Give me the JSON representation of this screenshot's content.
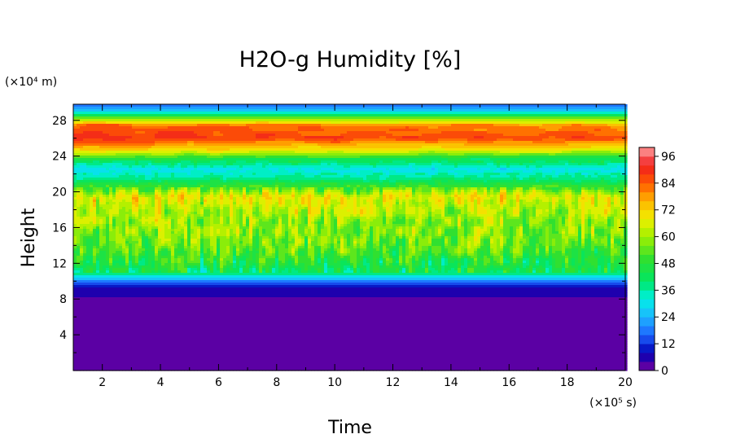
{
  "chart_data": {
    "type": "heatmap",
    "title": "H2O-g Humidity [%]",
    "xlabel": "Time",
    "ylabel": "Height",
    "x_unit_label": "(×10⁵ s)",
    "y_unit_label": "(×10⁴ m)",
    "x_range": [
      1,
      20
    ],
    "y_range": [
      0,
      29.8
    ],
    "x_ticks": [
      2,
      4,
      6,
      8,
      10,
      12,
      14,
      16,
      18,
      20
    ],
    "y_ticks": [
      4,
      8,
      12,
      16,
      20,
      24,
      28
    ],
    "colorbar": {
      "range": [
        0,
        100
      ],
      "tick_values": [
        0,
        12,
        24,
        36,
        48,
        60,
        72,
        84,
        96
      ],
      "stops": [
        {
          "value": 0,
          "color": "#7a00a0"
        },
        {
          "value": 4,
          "color": "#3c00a8"
        },
        {
          "value": 8,
          "color": "#0000b4"
        },
        {
          "value": 16,
          "color": "#1e64ff"
        },
        {
          "value": 24,
          "color": "#1eb4ff"
        },
        {
          "value": 32,
          "color": "#00f0e6"
        },
        {
          "value": 40,
          "color": "#00e664"
        },
        {
          "value": 50,
          "color": "#30e030"
        },
        {
          "value": 60,
          "color": "#a0f000"
        },
        {
          "value": 68,
          "color": "#f0f000"
        },
        {
          "value": 76,
          "color": "#ffb400"
        },
        {
          "value": 84,
          "color": "#ff5a00"
        },
        {
          "value": 92,
          "color": "#f01e1e"
        },
        {
          "value": 100,
          "color": "#ffa0a0"
        }
      ]
    },
    "vertical_profile": {
      "height": [
        0,
        7.8,
        8.3,
        9.3,
        10.1,
        10.9,
        12,
        14,
        16,
        18,
        19.4,
        20.6,
        21.5,
        22.5,
        23.6,
        24.6,
        26,
        27.4,
        28.2,
        29,
        29.8
      ],
      "humidity": [
        0,
        0,
        4,
        8,
        20,
        42,
        46,
        54,
        58,
        62,
        68,
        50,
        38,
        30,
        44,
        70,
        90,
        84,
        56,
        28,
        14
      ]
    }
  }
}
